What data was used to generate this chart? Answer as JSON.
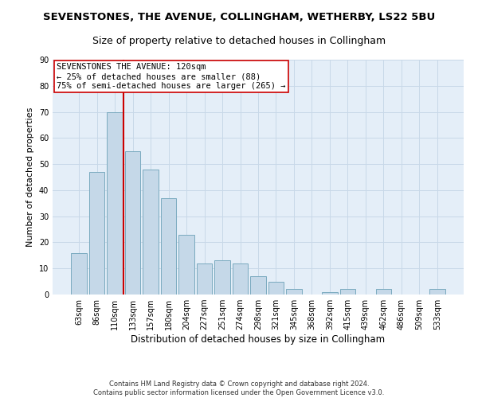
{
  "title": "SEVENSTONES, THE AVENUE, COLLINGHAM, WETHERBY, LS22 5BU",
  "subtitle": "Size of property relative to detached houses in Collingham",
  "xlabel": "Distribution of detached houses by size in Collingham",
  "ylabel": "Number of detached properties",
  "categories": [
    "63sqm",
    "86sqm",
    "110sqm",
    "133sqm",
    "157sqm",
    "180sqm",
    "204sqm",
    "227sqm",
    "251sqm",
    "274sqm",
    "298sqm",
    "321sqm",
    "345sqm",
    "368sqm",
    "392sqm",
    "415sqm",
    "439sqm",
    "462sqm",
    "486sqm",
    "509sqm",
    "533sqm"
  ],
  "values": [
    16,
    47,
    70,
    55,
    48,
    37,
    23,
    12,
    13,
    12,
    7,
    5,
    2,
    0,
    1,
    2,
    0,
    2,
    0,
    0,
    2
  ],
  "bar_color": "#c5d8e8",
  "bar_edge_color": "#7aaabf",
  "vline_color": "#cc0000",
  "annotation_line1": "SEVENSTONES THE AVENUE: 120sqm",
  "annotation_line2": "← 25% of detached houses are smaller (88)",
  "annotation_line3": "75% of semi-detached houses are larger (265) →",
  "annotation_box_facecolor": "#ffffff",
  "annotation_box_edgecolor": "#cc0000",
  "ylim": [
    0,
    90
  ],
  "yticks": [
    0,
    10,
    20,
    30,
    40,
    50,
    60,
    70,
    80,
    90
  ],
  "grid_color": "#c8d8e8",
  "bg_color": "#e4eef8",
  "footer_line1": "Contains HM Land Registry data © Crown copyright and database right 2024.",
  "footer_line2": "Contains public sector information licensed under the Open Government Licence v3.0.",
  "title_fontsize": 9.5,
  "subtitle_fontsize": 9,
  "xlabel_fontsize": 8.5,
  "ylabel_fontsize": 8,
  "tick_fontsize": 7,
  "annotation_fontsize": 7.5,
  "footer_fontsize": 6
}
